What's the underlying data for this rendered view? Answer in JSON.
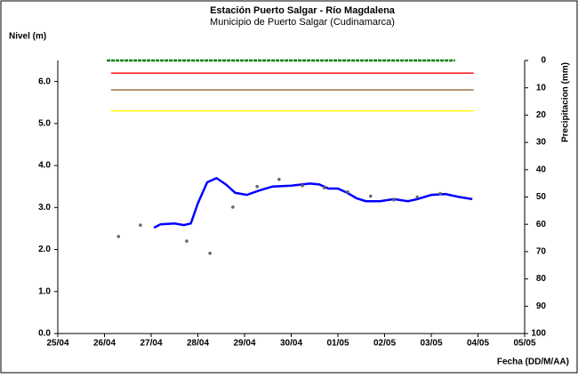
{
  "chart_data": {
    "type": "line",
    "title": "Estación Puerto Salgar - Río Magdalena",
    "subtitle": "Municipio de Puerto Salgar (Cudinamarca)",
    "ylabel": "Nivel (m)",
    "y2label": "Precipitacion (mm)",
    "xlabel": "Fecha (DD/M/AA)",
    "xlim": [
      0,
      10
    ],
    "xticks": [
      {
        "value": 0,
        "label": "25/04"
      },
      {
        "value": 1,
        "label": "26/04"
      },
      {
        "value": 2,
        "label": "27/04"
      },
      {
        "value": 3,
        "label": "28/04"
      },
      {
        "value": 4,
        "label": "29/04"
      },
      {
        "value": 5,
        "label": "30/04"
      },
      {
        "value": 6,
        "label": "01/05"
      },
      {
        "value": 7,
        "label": "02/05"
      },
      {
        "value": 8,
        "label": "03/05"
      },
      {
        "value": 9,
        "label": "04/05"
      },
      {
        "value": 10,
        "label": "05/05"
      }
    ],
    "ylim": [
      0,
      6.5
    ],
    "yticks": [
      {
        "value": 0,
        "label": "0.0"
      },
      {
        "value": 1,
        "label": "1.0"
      },
      {
        "value": 2,
        "label": "2.0"
      },
      {
        "value": 3,
        "label": "3.0"
      },
      {
        "value": 4,
        "label": "4.0"
      },
      {
        "value": 5,
        "label": "5.0"
      },
      {
        "value": 6,
        "label": "6.0"
      }
    ],
    "y2lim": [
      100,
      0
    ],
    "y2ticks": [
      0,
      10,
      20,
      30,
      40,
      50,
      60,
      70,
      80,
      90,
      100
    ],
    "series": [
      {
        "color": "#008000",
        "dashed": true,
        "x": [
          1.05,
          8.51
        ],
        "values": [
          6.5,
          6.5
        ]
      },
      {
        "color": "#ff0000",
        "x": [
          1.14,
          8.91
        ],
        "values": [
          6.2,
          6.2
        ]
      },
      {
        "color": "#996633",
        "x": [
          1.14,
          8.91
        ],
        "values": [
          5.8,
          5.8
        ]
      },
      {
        "color": "#ffff00",
        "x": [
          1.14,
          8.91
        ],
        "values": [
          5.3,
          5.3
        ]
      },
      {
        "color": "#0000ff",
        "width": 2.5,
        "x": [
          2.06,
          2.2,
          2.5,
          2.7,
          2.85,
          3.0,
          3.2,
          3.4,
          3.6,
          3.8,
          4.05,
          4.3,
          4.6,
          5.0,
          5.4,
          5.6,
          5.8,
          6.0,
          6.2,
          6.4,
          6.6,
          6.9,
          7.2,
          7.5,
          7.7,
          8.0,
          8.3,
          8.6,
          8.88
        ],
        "values": [
          2.52,
          2.6,
          2.62,
          2.58,
          2.62,
          3.1,
          3.6,
          3.7,
          3.55,
          3.35,
          3.3,
          3.4,
          3.5,
          3.52,
          3.57,
          3.55,
          3.45,
          3.45,
          3.35,
          3.22,
          3.15,
          3.15,
          3.2,
          3.15,
          3.2,
          3.3,
          3.32,
          3.25,
          3.2
        ]
      },
      {
        "color": "#666666",
        "scatter": true,
        "x": [
          1.3,
          1.77,
          2.76,
          3.26,
          3.75,
          4.27,
          4.74,
          5.24,
          5.71,
          6.21,
          6.7,
          7.2,
          7.7,
          8.19
        ],
        "values": [
          2.31,
          2.58,
          2.2,
          1.91,
          3.01,
          3.5,
          3.67,
          3.52,
          3.47,
          3.37,
          3.27,
          3.18,
          3.25,
          3.33
        ]
      }
    ]
  }
}
